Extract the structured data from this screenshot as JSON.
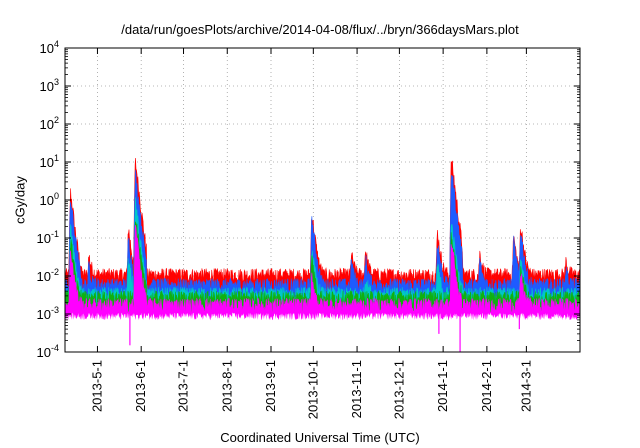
{
  "chart_data": {
    "type": "area",
    "title": "/data/run/goesPlots/archive/2014-04-08/flux/../bryn/366daysMars.plot",
    "xlabel": "Coordinated Universal Time (UTC)",
    "ylabel": "cGy/day",
    "yscale": "log",
    "ylim": [
      0.0001,
      10000
    ],
    "xlim": [
      "2013-04-08",
      "2014-04-08"
    ],
    "grid": true,
    "y_ticks": [
      {
        "value": 0.0001,
        "base": "10",
        "exp": "-4"
      },
      {
        "value": 0.001,
        "base": "10",
        "exp": "-3"
      },
      {
        "value": 0.01,
        "base": "10",
        "exp": "-2"
      },
      {
        "value": 0.1,
        "base": "10",
        "exp": "-1"
      },
      {
        "value": 1,
        "base": "10",
        "exp": "0"
      },
      {
        "value": 10,
        "base": "10",
        "exp": "1"
      },
      {
        "value": 100,
        "base": "10",
        "exp": "2"
      },
      {
        "value": 1000,
        "base": "10",
        "exp": "3"
      },
      {
        "value": 10000,
        "base": "10",
        "exp": "4"
      }
    ],
    "x_ticks": [
      {
        "date": "2013-05-01",
        "label": "2013-5-1"
      },
      {
        "date": "2013-06-01",
        "label": "2013-6-1"
      },
      {
        "date": "2013-07-01",
        "label": "2013-7-1"
      },
      {
        "date": "2013-08-01",
        "label": "2013-8-1"
      },
      {
        "date": "2013-09-01",
        "label": "2013-9-1"
      },
      {
        "date": "2013-10-01",
        "label": "2013-10-1"
      },
      {
        "date": "2013-11-01",
        "label": "2013-11-1"
      },
      {
        "date": "2013-12-01",
        "label": "2013-12-1"
      },
      {
        "date": "2014-01-01",
        "label": "2014-1-1"
      },
      {
        "date": "2014-02-01",
        "label": "2014-2-1"
      },
      {
        "date": "2014-03-01",
        "label": "2014-3-1"
      }
    ],
    "series_colors": [
      "#ff0000",
      "#1e5bff",
      "#00c8c8",
      "#10b010",
      "#ff00ff"
    ],
    "series": [
      {
        "color": "#ff0000",
        "baseline": 0.011,
        "peaks": [
          {
            "date": "2013-04-12",
            "value": 1.6
          },
          {
            "date": "2013-04-25",
            "value": 0.035
          },
          {
            "date": "2013-05-23",
            "value": 0.18
          },
          {
            "date": "2013-05-28",
            "value": 10
          },
          {
            "date": "2013-09-30",
            "value": 0.45
          },
          {
            "date": "2013-10-28",
            "value": 0.04
          },
          {
            "date": "2013-11-07",
            "value": 0.05
          },
          {
            "date": "2013-12-28",
            "value": 0.14
          },
          {
            "date": "2014-01-07",
            "value": 12
          },
          {
            "date": "2014-01-27",
            "value": 0.04
          },
          {
            "date": "2014-02-20",
            "value": 0.11
          },
          {
            "date": "2014-02-25",
            "value": 0.22
          },
          {
            "date": "2014-03-29",
            "value": 0.025
          }
        ]
      },
      {
        "color": "#1e5bff",
        "baseline": 0.006,
        "peaks": [
          {
            "date": "2013-04-12",
            "value": 1.0
          },
          {
            "date": "2013-04-25",
            "value": 0.02
          },
          {
            "date": "2013-05-23",
            "value": 0.1
          },
          {
            "date": "2013-05-28",
            "value": 4.5
          },
          {
            "date": "2013-09-30",
            "value": 0.3
          },
          {
            "date": "2013-10-28",
            "value": 0.025
          },
          {
            "date": "2013-11-07",
            "value": 0.03
          },
          {
            "date": "2013-12-28",
            "value": 0.08
          },
          {
            "date": "2014-01-07",
            "value": 6
          },
          {
            "date": "2014-01-27",
            "value": 0.025
          },
          {
            "date": "2014-02-20",
            "value": 0.08
          },
          {
            "date": "2014-02-25",
            "value": 0.15
          },
          {
            "date": "2014-03-29",
            "value": 0.015
          }
        ]
      },
      {
        "color": "#00c8c8",
        "baseline": 0.0035,
        "peaks": [
          {
            "date": "2013-04-12",
            "value": 0.18
          },
          {
            "date": "2013-05-23",
            "value": 0.03
          },
          {
            "date": "2013-05-28",
            "value": 0.9
          },
          {
            "date": "2013-09-30",
            "value": 0.05
          },
          {
            "date": "2013-11-07",
            "value": 0.01
          },
          {
            "date": "2013-12-28",
            "value": 0.02
          },
          {
            "date": "2014-01-07",
            "value": 0.25
          },
          {
            "date": "2014-02-25",
            "value": 0.03
          }
        ]
      },
      {
        "color": "#10b010",
        "baseline": 0.0028,
        "peaks": [
          {
            "date": "2013-04-12",
            "value": 0.1
          },
          {
            "date": "2013-05-28",
            "value": 0.4
          },
          {
            "date": "2013-09-30",
            "value": 0.03
          },
          {
            "date": "2014-01-07",
            "value": 0.15
          },
          {
            "date": "2014-02-25",
            "value": 0.02
          }
        ]
      },
      {
        "color": "#ff00ff",
        "baseline": 0.0018,
        "peaks": [
          {
            "date": "2013-04-12",
            "value": 0.05
          },
          {
            "date": "2013-05-28",
            "value": 0.2
          },
          {
            "date": "2013-09-30",
            "value": 0.01
          },
          {
            "date": "2014-01-07",
            "value": 0.08
          },
          {
            "date": "2014-02-25",
            "value": 0.012
          }
        ]
      }
    ],
    "dips": [
      {
        "date": "2013-05-24",
        "value": 0.00015
      },
      {
        "date": "2013-12-29",
        "value": 0.0003
      },
      {
        "date": "2014-01-13",
        "value": 0.0001
      },
      {
        "date": "2014-02-24",
        "value": 0.0004
      }
    ]
  }
}
